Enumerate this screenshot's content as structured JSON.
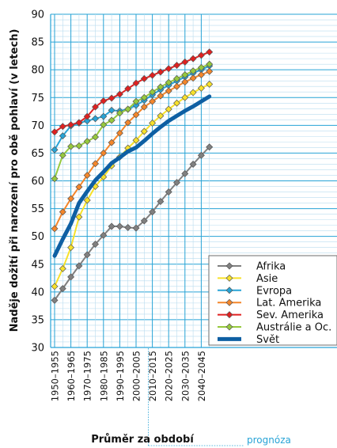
{
  "chart_data": {
    "type": "line",
    "xlabel": "Průměr za období",
    "ylabel": "Naděje dožití při narození pro obě pohlaví (v letech)",
    "ylim": [
      30,
      90
    ],
    "yticks": [
      30,
      35,
      40,
      45,
      50,
      55,
      60,
      65,
      70,
      75,
      80,
      85,
      90
    ],
    "grid": true,
    "legend_position": "bottom-right",
    "forecast_label": "prognóza",
    "x_tick_labels": [
      "1950–1955",
      "1960–1965",
      "1970–1975",
      "1980–1985",
      "1990–1995",
      "2000–2005",
      "2010–2015",
      "2020–2025",
      "2030–2035",
      "2040–2045"
    ],
    "x": [
      "1950–1955",
      "1955–1960",
      "1960–1965",
      "1965–1970",
      "1970–1975",
      "1975–1980",
      "1980–1985",
      "1985–1990",
      "1990–1995",
      "1995–2000",
      "2000–2005",
      "2005–2010",
      "2010–2015",
      "2015–2020",
      "2020–2025",
      "2025–2030",
      "2030–2035",
      "2035–2040",
      "2040–2045",
      "2045–2050"
    ],
    "series": [
      {
        "name": "Afrika",
        "color": "#808080",
        "marker": true,
        "values": [
          38.5,
          40.6,
          42.7,
          44.7,
          46.7,
          48.6,
          50.2,
          51.8,
          51.8,
          51.6,
          51.5,
          52.8,
          54.4,
          56.3,
          58.0,
          59.7,
          61.3,
          63.0,
          64.6,
          66.1
        ]
      },
      {
        "name": "Asie",
        "color": "#f7e12a",
        "marker": true,
        "values": [
          41.0,
          44.2,
          48.0,
          53.5,
          56.5,
          59.0,
          60.7,
          62.7,
          64.3,
          65.9,
          67.3,
          68.9,
          70.4,
          71.7,
          72.9,
          74.0,
          75.0,
          75.9,
          76.7,
          77.4
        ]
      },
      {
        "name": "Evropa",
        "color": "#27a3d6",
        "marker": true,
        "values": [
          65.6,
          68.1,
          69.9,
          70.4,
          70.8,
          71.2,
          71.6,
          72.7,
          72.6,
          72.9,
          73.6,
          74.5,
          75.5,
          76.4,
          77.2,
          78.0,
          78.7,
          79.4,
          80.0,
          80.7
        ]
      },
      {
        "name": "Lat. Amerika",
        "color": "#f4862a",
        "marker": true,
        "values": [
          51.4,
          54.4,
          56.8,
          58.9,
          61.0,
          63.1,
          65.0,
          66.9,
          68.6,
          70.5,
          71.9,
          73.3,
          74.3,
          75.3,
          76.2,
          77.0,
          77.8,
          78.5,
          79.1,
          79.7
        ]
      },
      {
        "name": "Sev. Amerika",
        "color": "#e02020",
        "marker": true,
        "values": [
          68.8,
          69.8,
          70.1,
          70.5,
          71.6,
          73.3,
          74.4,
          74.9,
          75.6,
          76.6,
          77.6,
          78.4,
          79.0,
          79.6,
          80.2,
          80.8,
          81.4,
          82.0,
          82.6,
          83.2
        ]
      },
      {
        "name": "Austrálie a Oc.",
        "color": "#96c93d",
        "marker": true,
        "values": [
          60.4,
          64.6,
          66.2,
          66.3,
          67.1,
          67.9,
          70.1,
          70.9,
          72.2,
          72.9,
          74.3,
          75.0,
          76.0,
          76.9,
          77.7,
          78.4,
          79.1,
          79.8,
          80.4,
          81.0
        ]
      },
      {
        "name": "Svět",
        "color": "#0e5fa3",
        "marker": false,
        "values": [
          46.5,
          49.5,
          52.3,
          56.0,
          58.1,
          60.1,
          61.6,
          63.2,
          64.2,
          65.3,
          66.0,
          67.2,
          68.5,
          69.7,
          70.8,
          71.7,
          72.6,
          73.4,
          74.3,
          75.2
        ]
      }
    ]
  }
}
